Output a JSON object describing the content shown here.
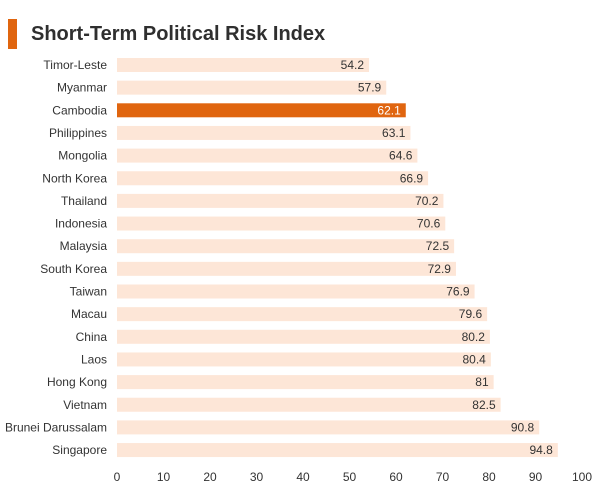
{
  "chart_data": {
    "type": "bar",
    "orientation": "horizontal",
    "title": "Short-Term Political Risk Index",
    "categories": [
      "Timor-Leste",
      "Myanmar",
      "Cambodia",
      "Philippines",
      "Mongolia",
      "North Korea",
      "Thailand",
      "Indonesia",
      "Malaysia",
      "South Korea",
      "Taiwan",
      "Macau",
      "China",
      "Laos",
      "Hong Kong",
      "Vietnam",
      "Brunei Darussalam",
      "Singapore"
    ],
    "values": [
      54.2,
      57.9,
      62.1,
      63.1,
      64.6,
      66.9,
      70.2,
      70.6,
      72.5,
      72.9,
      76.9,
      79.6,
      80.2,
      80.4,
      81,
      82.5,
      90.8,
      94.8
    ],
    "value_labels": [
      "54.2",
      "57.9",
      "62.1",
      "63.1",
      "64.6",
      "66.9",
      "70.2",
      "70.6",
      "72.5",
      "72.9",
      "76.9",
      "79.6",
      "80.2",
      "80.4",
      "81",
      "82.5",
      "90.8",
      "94.8"
    ],
    "highlight": "Cambodia",
    "xlim": [
      0,
      100
    ],
    "xticks": [
      0,
      10,
      20,
      30,
      40,
      50,
      60,
      70,
      80,
      90,
      100
    ],
    "grid": false,
    "legend": "none",
    "colors": {
      "bar": "#fde6d7",
      "highlight_bar": "#e0650f",
      "title_accent": "#e0650f",
      "text": "#333333",
      "highlight_text": "#ffffff"
    }
  }
}
